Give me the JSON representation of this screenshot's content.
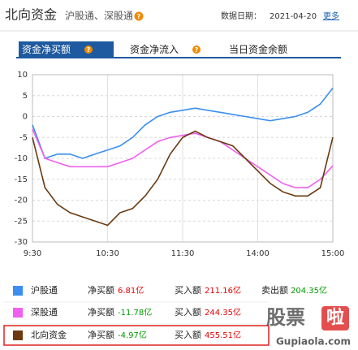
{
  "header": {
    "title": "北向资金",
    "subtitle": "沪股通、深股通",
    "help": "?",
    "date_label": "数据日期：",
    "date": "2021-04-20",
    "more": "更多"
  },
  "tabs": [
    {
      "label": "资金净买额",
      "help": "?",
      "selected": true
    },
    {
      "label": "资金净流入",
      "help": "?",
      "selected": false
    },
    {
      "label": "当日资金余额",
      "selected": false
    }
  ],
  "chart_data": {
    "type": "line",
    "x": [
      0,
      10,
      20,
      30,
      40,
      50,
      60,
      70,
      80,
      90,
      100,
      110,
      120,
      130,
      140,
      150,
      160,
      170,
      180,
      190,
      200,
      210,
      220,
      230,
      240
    ],
    "xlim": [
      0,
      240
    ],
    "xticks": [
      {
        "value": 0,
        "label": "9:30"
      },
      {
        "value": 60,
        "label": "10:30"
      },
      {
        "value": 120,
        "label": "11:30"
      },
      {
        "value": 180,
        "label": "14:00"
      },
      {
        "value": 240,
        "label": "15:00"
      }
    ],
    "ylim": [
      -30,
      10
    ],
    "yticks": [
      10,
      5,
      0,
      -5,
      -10,
      -15,
      -20,
      -25,
      -30
    ],
    "grid": true,
    "series": [
      {
        "name": "沪股通",
        "color": "#3b8ff0",
        "values": [
          -2,
          -10,
          -9,
          -9,
          -10,
          -9,
          -8,
          -7,
          -5,
          -2,
          0,
          1,
          1.5,
          2,
          1.5,
          1,
          0.5,
          0,
          -0.5,
          -1,
          -0.5,
          0,
          1,
          3,
          6.81
        ]
      },
      {
        "name": "深股通",
        "color": "#f060f0",
        "values": [
          -3,
          -10,
          -11,
          -12,
          -12,
          -12,
          -12,
          -11,
          -10,
          -8,
          -6,
          -5,
          -4.5,
          -4,
          -5,
          -6,
          -8,
          -10,
          -12,
          -14,
          -16,
          -17,
          -17,
          -15,
          -11.78
        ]
      },
      {
        "name": "北向资金",
        "color": "#6b3a10",
        "values": [
          -5,
          -17,
          -21,
          -23,
          -24,
          -25,
          -26,
          -23,
          -22,
          -19,
          -15,
          -9,
          -5,
          -3.5,
          -5,
          -6,
          -7,
          -10,
          -13,
          -16,
          -18,
          -19,
          -19,
          -17,
          -4.97
        ]
      }
    ]
  },
  "summary": [
    {
      "net_label": "净买额",
      "net": "6.81亿",
      "net_color": "#e60000",
      "buy_label": "买入额",
      "buy": "211.16亿",
      "sell_label": "卖出额",
      "sell": "204.35亿"
    },
    {
      "net_label": "净买额",
      "net": "-11.78亿",
      "net_color": "#009a00",
      "buy_label": "买入额",
      "buy": "244.35亿"
    },
    {
      "net_label": "净买额",
      "net": "-4.97亿",
      "net_color": "#009a00",
      "buy_label": "买入额",
      "buy": "455.51亿"
    }
  ],
  "watermark": {
    "logo_1": "股票",
    "logo_2": "啦",
    "site": "Gupiaola.com"
  }
}
